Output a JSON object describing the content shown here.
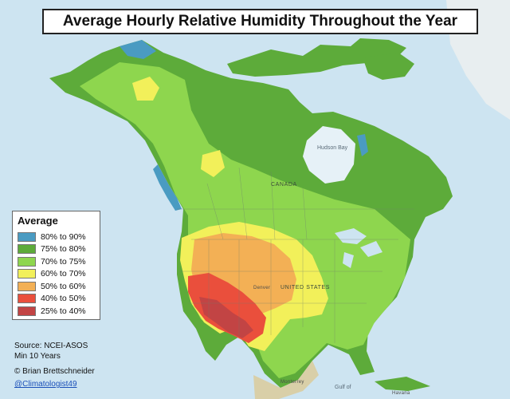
{
  "title": "Average Hourly Relative Humidity Throughout the Year",
  "legend": {
    "title": "Average",
    "items": [
      {
        "label": "80% to 90%",
        "color": "#4a9bc2"
      },
      {
        "label": "75% to 80%",
        "color": "#5dab3a"
      },
      {
        "label": "70% to 75%",
        "color": "#8ed64e"
      },
      {
        "label": "60% to 70%",
        "color": "#f2f05a"
      },
      {
        "label": "50% to 60%",
        "color": "#f3b055"
      },
      {
        "label": "40% to 50%",
        "color": "#ea4f3c"
      },
      {
        "label": "25% to 40%",
        "color": "#c24444"
      }
    ]
  },
  "footer": {
    "source": "Source: NCEI-ASOS",
    "years": "Min 10 Years",
    "credit": "© Brian Brettschneider",
    "handle": "@Climatologist49"
  },
  "map_labels": {
    "canada": "CANADA",
    "united_states": "UNITED STATES",
    "hudson_bay": "Hudson Bay",
    "gulf_of": "Gulf of",
    "havana": "Havana",
    "monterrey": "Monterrey",
    "denver": "Denver"
  }
}
